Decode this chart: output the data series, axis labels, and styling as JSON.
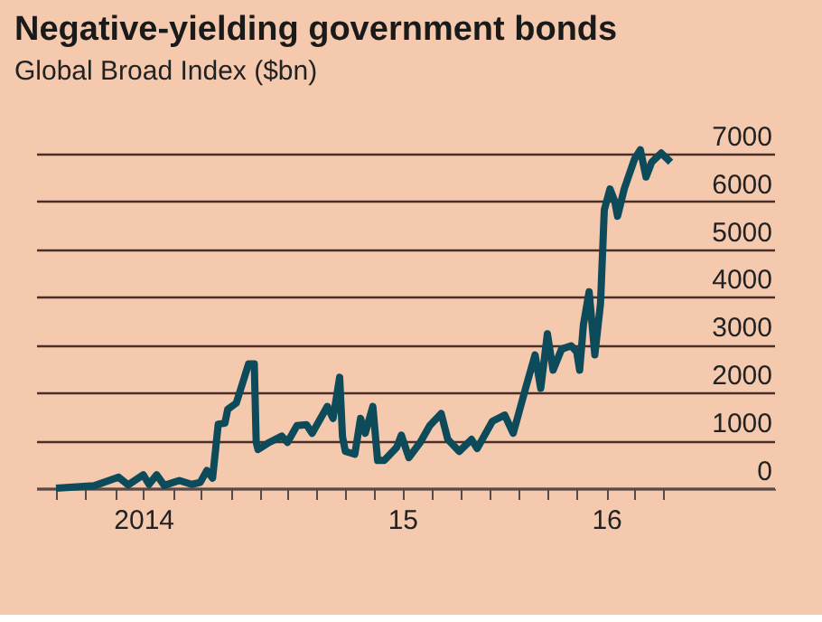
{
  "chart_data": {
    "type": "line",
    "title": "Negative-yielding government bonds",
    "subtitle": "Global Broad Index ($bn)",
    "x": [
      "2014-07-01",
      "2014-08-10",
      "2014-09-05",
      "2014-09-15",
      "2014-10-01",
      "2014-10-07",
      "2014-10-15",
      "2014-10-23",
      "2014-11-08",
      "2014-11-21",
      "2014-11-30",
      "2014-12-07",
      "2014-12-13",
      "2014-12-19",
      "2014-12-26",
      "2014-12-29",
      "2015-01-07",
      "2015-01-14",
      "2015-01-20",
      "2015-01-26",
      "2015-01-28",
      "2015-01-30",
      "2015-02-11",
      "2015-02-24",
      "2015-03-02",
      "2015-03-12",
      "2015-03-22",
      "2015-03-28",
      "2015-04-13",
      "2015-04-19",
      "2015-04-26",
      "2015-04-29",
      "2015-05-02",
      "2015-05-12",
      "2015-05-18",
      "2015-05-23",
      "2015-05-31",
      "2015-06-05",
      "2015-06-12",
      "2015-06-25",
      "2015-06-30",
      "2015-07-08",
      "2015-07-20",
      "2015-07-30",
      "2015-08-11",
      "2015-08-18",
      "2015-08-30",
      "2015-09-12",
      "2015-09-18",
      "2015-10-04",
      "2015-10-17",
      "2015-10-26",
      "2015-11-08",
      "2015-11-18",
      "2015-11-24",
      "2015-12-01",
      "2015-12-07",
      "2015-12-16",
      "2015-12-26",
      "2016-01-01",
      "2016-01-04",
      "2016-01-08",
      "2016-01-14",
      "2016-01-20",
      "2016-01-26",
      "2016-01-30",
      "2016-02-05",
      "2016-02-10",
      "2016-02-13",
      "2016-02-20",
      "2016-03-02",
      "2016-03-08",
      "2016-03-14",
      "2016-03-20",
      "2016-03-30",
      "2016-04-09"
    ],
    "series": [
      {
        "color": "#0d4a5a",
        "values": [
          0,
          50,
          230,
          70,
          280,
          80,
          280,
          60,
          160,
          80,
          120,
          370,
          210,
          1340,
          1360,
          1650,
          1780,
          2220,
          2600,
          2600,
          960,
          810,
          960,
          1090,
          960,
          1310,
          1330,
          1150,
          1710,
          1460,
          2320,
          1080,
          770,
          710,
          1460,
          1150,
          1710,
          580,
          580,
          850,
          1110,
          640,
          960,
          1310,
          1560,
          1020,
          770,
          1020,
          830,
          1400,
          1530,
          1150,
          2090,
          2790,
          2090,
          3230,
          2470,
          2910,
          2980,
          2850,
          2470,
          3420,
          4110,
          2790,
          3860,
          5820,
          6260,
          6000,
          5690,
          6260,
          6890,
          7080,
          6510,
          6820,
          7010,
          6820
        ]
      }
    ],
    "xlim": [
      "2014-06-10",
      "2016-07-28"
    ],
    "xticks": [
      {
        "value": "2014-07-01",
        "label": null
      },
      {
        "value": "2014-08-01",
        "label": null
      },
      {
        "value": "2014-09-01",
        "label": null
      },
      {
        "value": "2014-10-01",
        "label": "2014"
      },
      {
        "value": "2014-11-01",
        "label": null
      },
      {
        "value": "2014-12-01",
        "label": null
      },
      {
        "value": "2015-01-01",
        "label": null
      },
      {
        "value": "2015-02-01",
        "label": null
      },
      {
        "value": "2015-03-01",
        "label": null
      },
      {
        "value": "2015-04-01",
        "label": null
      },
      {
        "value": "2015-05-01",
        "label": null
      },
      {
        "value": "2015-06-01",
        "label": null
      },
      {
        "value": "2015-07-01",
        "label": "15"
      },
      {
        "value": "2015-08-01",
        "label": null
      },
      {
        "value": "2015-09-01",
        "label": null
      },
      {
        "value": "2015-10-01",
        "label": null
      },
      {
        "value": "2015-11-01",
        "label": null
      },
      {
        "value": "2015-12-01",
        "label": null
      },
      {
        "value": "2016-01-01",
        "label": null
      },
      {
        "value": "2016-02-01",
        "label": "16"
      },
      {
        "value": "2016-03-01",
        "label": null
      },
      {
        "value": "2016-04-01",
        "label": null
      }
    ],
    "ylim": [
      0,
      7300
    ],
    "yticks": [
      0,
      1000,
      2000,
      3000,
      4000,
      5000,
      6000,
      7000
    ],
    "grid": "y",
    "line_style": "solid",
    "marker": "none",
    "legend": false
  }
}
